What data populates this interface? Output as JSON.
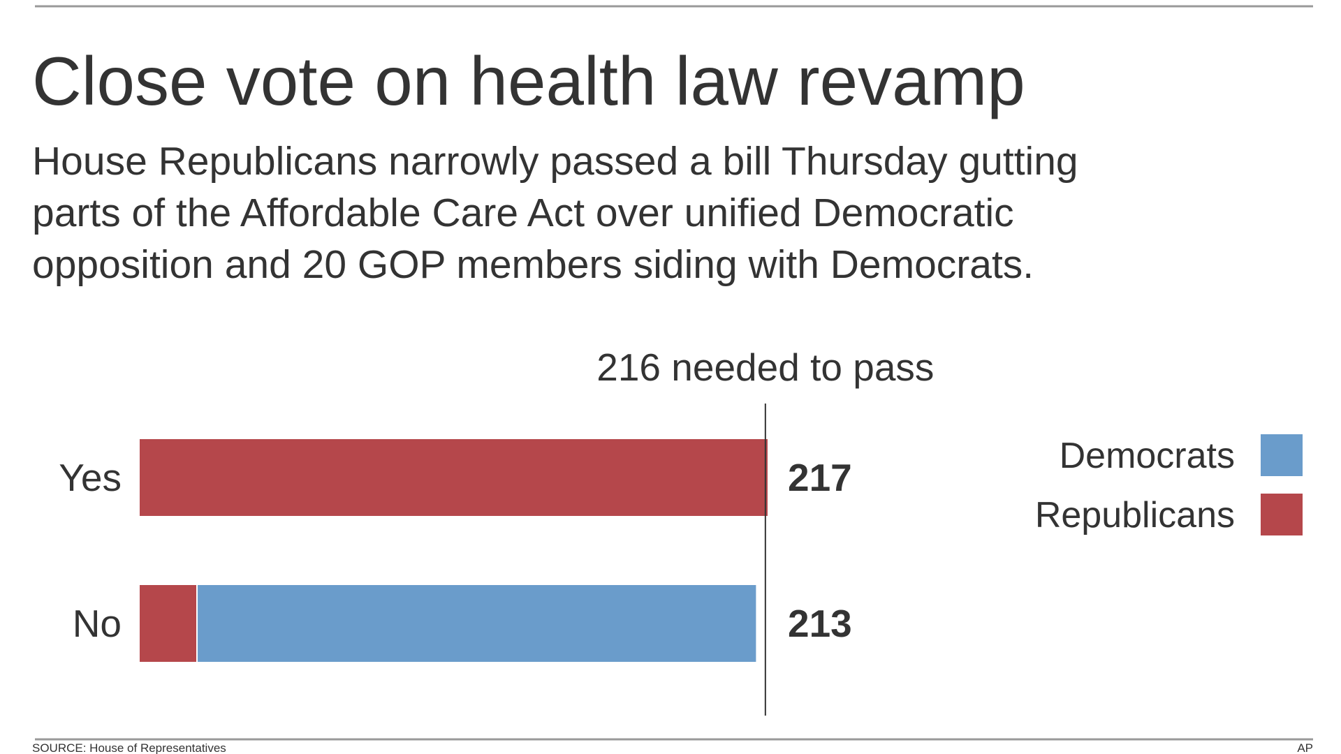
{
  "chart_data": {
    "type": "stacked-bar-horizontal",
    "title": "Close vote on health law revamp",
    "subtitle": [
      "House Republicans narrowly passed a bill Thursday gutting",
      "parts of the Affordable Care Act over unified Democratic",
      "opposition and 20 GOP members siding with Democrats."
    ],
    "categories": [
      "Yes",
      "No"
    ],
    "series": [
      {
        "name": "Republicans",
        "color": "#b5474b",
        "values": [
          217,
          20
        ]
      },
      {
        "name": "Democrats",
        "color": "#6a9ccb",
        "values": [
          0,
          193
        ]
      }
    ],
    "totals": [
      217,
      213
    ],
    "threshold": 216,
    "annotation": "216 needed to pass",
    "legend": "right",
    "source": "SOURCE: House of Representatives",
    "credit": "AP"
  }
}
